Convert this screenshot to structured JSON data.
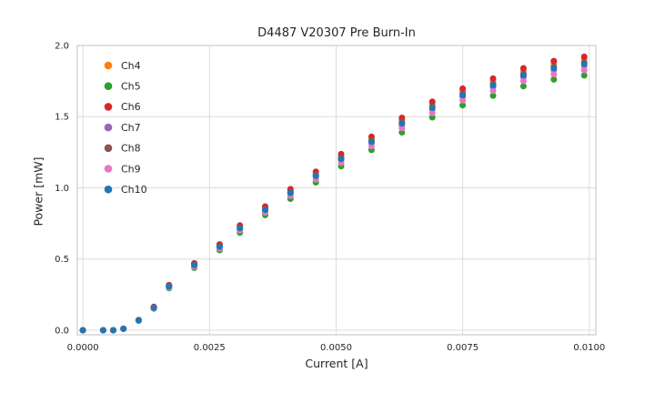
{
  "colors": {
    "background": "#ffffff",
    "grid": "#dcdcdc",
    "border": "#cccccc",
    "text": "#262626"
  },
  "chart_data": {
    "type": "scatter",
    "title": "D4487 V20307 Pre Burn-In",
    "xlabel": "Current [A]",
    "ylabel": "Power [mW]",
    "xlim": [
      -0.00011,
      0.01013
    ],
    "ylim": [
      -0.032,
      2.0
    ],
    "grid": true,
    "legend_position": "upper left",
    "xticks": {
      "values": [
        0.0,
        0.0025,
        0.005,
        0.0075,
        0.01
      ],
      "labels": [
        "0.0000",
        "0.0025",
        "0.0050",
        "0.0075",
        "0.0100"
      ]
    },
    "yticks": {
      "values": [
        0.0,
        0.5,
        1.0,
        1.5,
        2.0
      ],
      "labels": [
        "0.0",
        "0.5",
        "1.0",
        "1.5",
        "2.0"
      ]
    },
    "x": [
      0.0,
      0.0004,
      0.0006,
      0.0008,
      0.0011,
      0.0014,
      0.0017,
      0.0022,
      0.0027,
      0.0031,
      0.0036,
      0.0041,
      0.0046,
      0.0051,
      0.0057,
      0.0063,
      0.0069,
      0.0075,
      0.0081,
      0.0087,
      0.0093,
      0.0099
    ],
    "series": [
      {
        "name": "Ch4",
        "color": "#ff7f0e",
        "values": [
          0,
          0,
          0,
          0.01,
          0.071,
          0.162,
          0.314,
          0.466,
          0.597,
          0.729,
          0.86,
          0.982,
          1.103,
          1.225,
          1.346,
          1.478,
          1.589,
          1.68,
          1.751,
          1.822,
          1.872,
          1.903
        ]
      },
      {
        "name": "Ch5",
        "color": "#2ca02c",
        "values": [
          0,
          0,
          0,
          0.01,
          0.067,
          0.152,
          0.295,
          0.438,
          0.562,
          0.685,
          0.809,
          0.923,
          1.038,
          1.152,
          1.266,
          1.39,
          1.495,
          1.58,
          1.647,
          1.714,
          1.761,
          1.79
        ]
      },
      {
        "name": "Ch6",
        "color": "#d62728",
        "values": [
          0,
          0,
          0,
          0.01,
          0.072,
          0.164,
          0.317,
          0.47,
          0.603,
          0.736,
          0.869,
          0.991,
          1.114,
          1.237,
          1.359,
          1.492,
          1.605,
          1.697,
          1.768,
          1.84,
          1.891,
          1.921
        ]
      },
      {
        "name": "Ch7",
        "color": "#9467bd",
        "values": [
          0,
          0,
          0,
          0.01,
          0.069,
          0.158,
          0.306,
          0.454,
          0.583,
          0.711,
          0.84,
          0.958,
          1.077,
          1.196,
          1.314,
          1.442,
          1.551,
          1.64,
          1.709,
          1.778,
          1.828,
          1.857
        ]
      },
      {
        "name": "Ch8",
        "color": "#8c564b",
        "values": [
          0,
          0,
          0,
          0.01,
          0.07,
          0.16,
          0.31,
          0.46,
          0.59,
          0.72,
          0.85,
          0.97,
          1.09,
          1.21,
          1.33,
          1.46,
          1.57,
          1.66,
          1.73,
          1.8,
          1.85,
          1.88
        ]
      },
      {
        "name": "Ch9",
        "color": "#e377c2",
        "values": [
          0,
          0,
          0,
          0.01,
          0.068,
          0.156,
          0.301,
          0.447,
          0.573,
          0.7,
          0.826,
          0.943,
          1.059,
          1.176,
          1.293,
          1.419,
          1.526,
          1.614,
          1.682,
          1.75,
          1.798,
          1.827
        ]
      },
      {
        "name": "Ch10",
        "color": "#1f77b4",
        "values": [
          0,
          0,
          0,
          0.01,
          0.07,
          0.159,
          0.308,
          0.458,
          0.587,
          0.716,
          0.846,
          0.965,
          1.084,
          1.204,
          1.323,
          1.453,
          1.562,
          1.652,
          1.721,
          1.791,
          1.841,
          1.871
        ]
      }
    ]
  }
}
